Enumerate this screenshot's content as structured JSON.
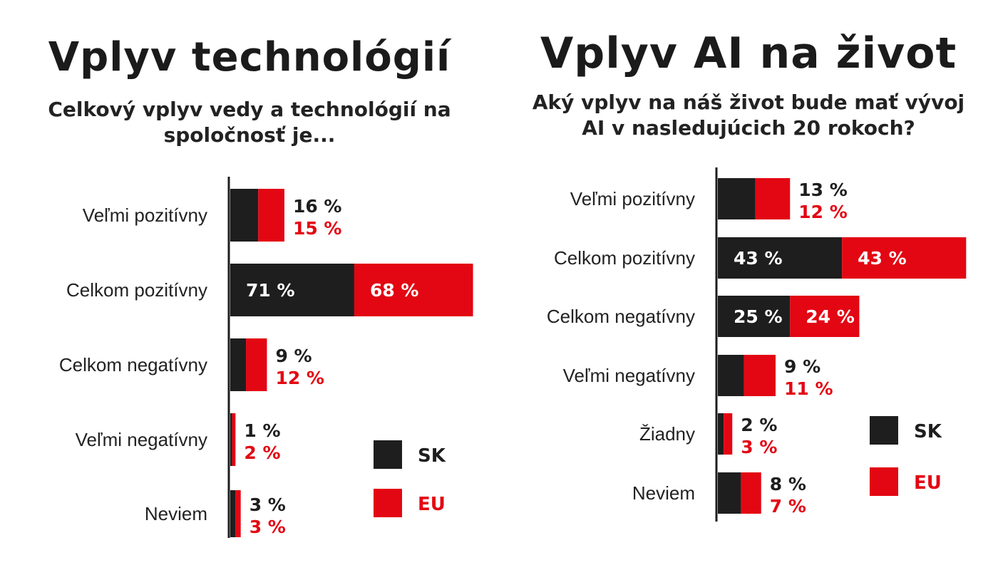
{
  "colors": {
    "sk": "#1e1e1e",
    "eu": "#e30613",
    "axis": "#1e1e1e",
    "label_on_bar": "#ffffff"
  },
  "chart_data": [
    {
      "type": "bar",
      "orientation": "horizontal",
      "stacked": true,
      "title": "Vplyv technológií",
      "subtitle_lines": [
        "Celkový vplyv vedy a technológií na",
        "spoločnosť je..."
      ],
      "categories": [
        "Veľmi pozitívny",
        "Celkom pozitívny",
        "Celkom negatívny",
        "Veľmi negatívny",
        "Neviem"
      ],
      "series": [
        {
          "key": "sk",
          "name": "SK",
          "values": [
            16,
            71,
            9,
            1,
            3
          ]
        },
        {
          "key": "eu",
          "name": "EU",
          "values": [
            15,
            68,
            12,
            2,
            3
          ]
        }
      ],
      "value_labels": {
        "sk": [
          "16 %",
          "71 %",
          "9 %",
          "1 %",
          "3 %"
        ],
        "eu": [
          "15 %",
          "68 %",
          "12 %",
          "2 %",
          "3 %"
        ]
      },
      "legend": {
        "position": "bottom-right",
        "entries": [
          "SK",
          "EU"
        ]
      }
    },
    {
      "type": "bar",
      "orientation": "horizontal",
      "stacked": true,
      "title": "Vplyv AI na život",
      "subtitle_lines": [
        "Aký vplyv na náš život bude mať vývoj",
        "AI v nasledujúcich 20 rokoch?"
      ],
      "categories": [
        "Veľmi pozitívny",
        "Celkom pozitívny",
        "Celkom negatívny",
        "Veľmi negatívny",
        "Žiadny",
        "Neviem"
      ],
      "series": [
        {
          "key": "sk",
          "name": "SK",
          "values": [
            13,
            43,
            25,
            9,
            2,
            8
          ]
        },
        {
          "key": "eu",
          "name": "EU",
          "values": [
            12,
            43,
            24,
            11,
            3,
            7
          ]
        }
      ],
      "value_labels": {
        "sk": [
          "13 %",
          "43 %",
          "25 %",
          "9 %",
          "2 %",
          "8 %"
        ],
        "eu": [
          "12 %",
          "43 %",
          "24 %",
          "11 %",
          "3 %",
          "7 %"
        ]
      },
      "legend": {
        "position": "bottom-right",
        "entries": [
          "SK",
          "EU"
        ]
      }
    }
  ]
}
